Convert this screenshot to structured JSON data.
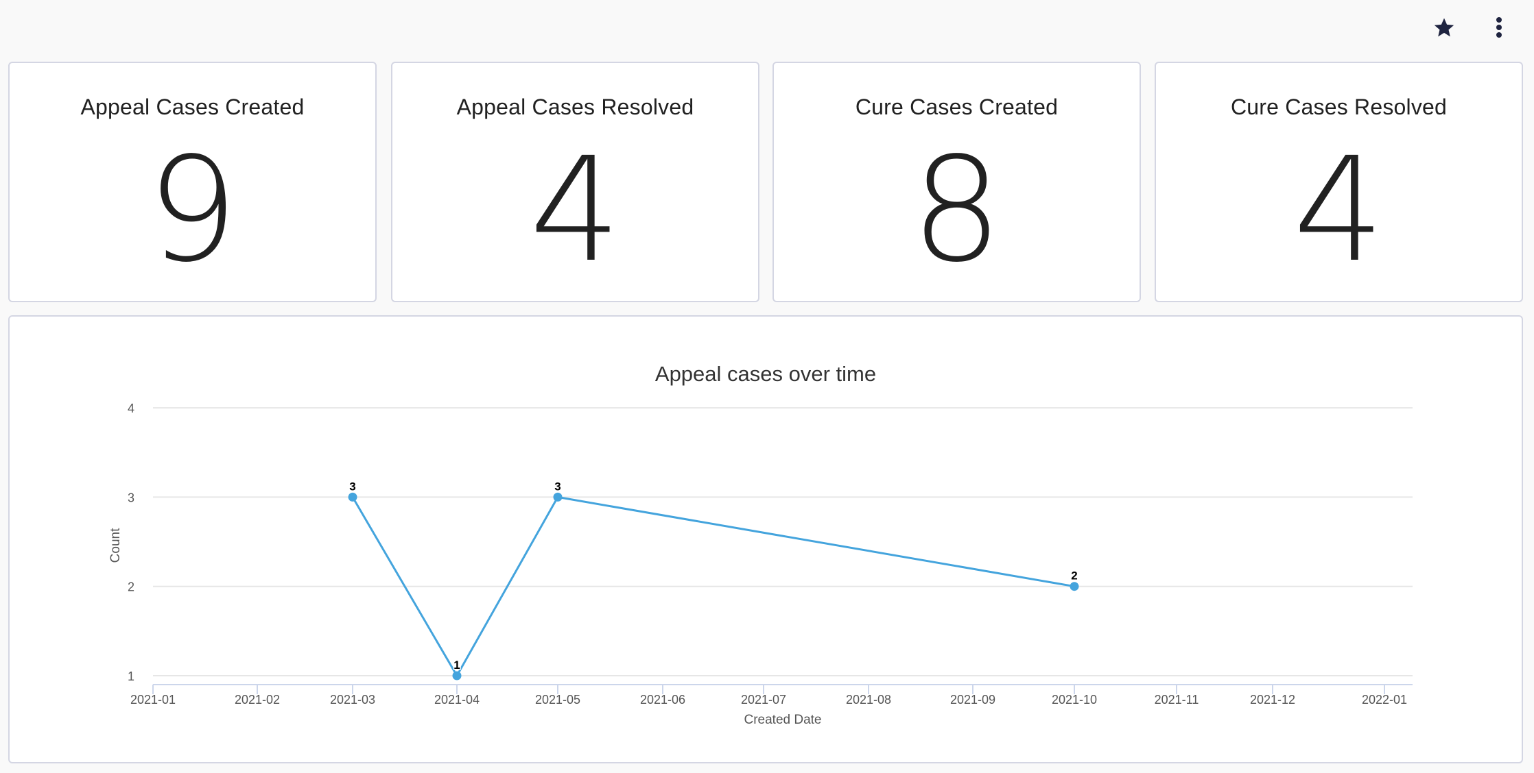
{
  "header": {
    "favorite_icon": "star-icon",
    "menu_icon": "more-vert-icon"
  },
  "kpis": [
    {
      "title": "Appeal Cases Created",
      "value": "9"
    },
    {
      "title": "Appeal Cases Resolved",
      "value": "4"
    },
    {
      "title": "Cure Cases Created",
      "value": "8"
    },
    {
      "title": "Cure Cases Resolved",
      "value": "4"
    }
  ],
  "chart": {
    "title": "Appeal cases over time",
    "xlabel": "Created Date",
    "ylabel": "Count",
    "line_color": "#44a4dd"
  },
  "chart_data": {
    "type": "line",
    "title": "Appeal cases over time",
    "xlabel": "Created Date",
    "ylabel": "Count",
    "x_ticks": [
      "2021-01",
      "2021-02",
      "2021-03",
      "2021-04",
      "2021-05",
      "2021-06",
      "2021-07",
      "2021-08",
      "2021-09",
      "2021-10",
      "2021-11",
      "2021-12",
      "2022-01"
    ],
    "y_ticks": [
      1,
      2,
      3,
      4
    ],
    "ylim": [
      1,
      4
    ],
    "grid": true,
    "legend": null,
    "series": [
      {
        "name": "Count",
        "x": [
          "2021-03",
          "2021-04",
          "2021-05",
          "2021-10"
        ],
        "values": [
          3,
          1,
          3,
          2
        ],
        "data_labels": [
          "3",
          "1",
          "3",
          "2"
        ]
      }
    ]
  }
}
